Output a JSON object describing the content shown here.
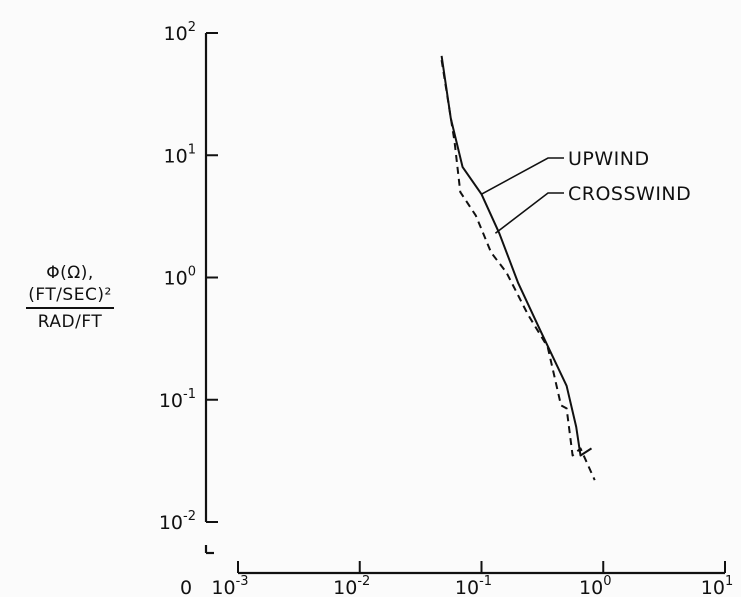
{
  "chart_data": {
    "type": "line",
    "title": "",
    "ylabel": {
      "line1": "Φ(Ω),",
      "numerator": "(FT/SEC)²",
      "denominator": "RAD/FT"
    },
    "xlabel": "",
    "xscale": "log",
    "yscale": "log",
    "xlim": [
      0.001,
      10
    ],
    "ylim": [
      0.01,
      100
    ],
    "x_zero_label": "0",
    "xticks": [
      {
        "value": 0.001,
        "base": "10",
        "exp": "-3"
      },
      {
        "value": 0.01,
        "base": "10",
        "exp": "-2"
      },
      {
        "value": 0.1,
        "base": "10",
        "exp": "-1"
      },
      {
        "value": 1,
        "base": "10",
        "exp": "0"
      },
      {
        "value": 10,
        "base": "10",
        "exp": "1"
      }
    ],
    "yticks": [
      {
        "value": 100,
        "base": "10",
        "exp": "2"
      },
      {
        "value": 10,
        "base": "10",
        "exp": "1"
      },
      {
        "value": 1,
        "base": "10",
        "exp": "0"
      },
      {
        "value": 0.1,
        "base": "10",
        "exp": "-1"
      },
      {
        "value": 0.01,
        "base": "10",
        "exp": "-2"
      }
    ],
    "series": [
      {
        "name": "UPWIND",
        "style": "solid",
        "x": [
          0.047,
          0.056,
          0.07,
          0.1,
          0.14,
          0.2,
          0.3,
          0.5,
          0.6,
          0.65,
          0.8
        ],
        "y": [
          65,
          20,
          8,
          4.8,
          2.3,
          0.9,
          0.38,
          0.13,
          0.06,
          0.035,
          0.04
        ]
      },
      {
        "name": "CROSSWIND",
        "style": "dashed",
        "x": [
          0.047,
          0.06,
          0.067,
          0.09,
          0.12,
          0.16,
          0.24,
          0.35,
          0.45,
          0.5,
          0.56,
          0.65,
          0.85
        ],
        "y": [
          60,
          13,
          5,
          3.2,
          1.6,
          1.1,
          0.5,
          0.27,
          0.09,
          0.085,
          0.035,
          0.04,
          0.022
        ]
      }
    ],
    "legend": "right, labels with leader lines to curves",
    "grid": false
  }
}
